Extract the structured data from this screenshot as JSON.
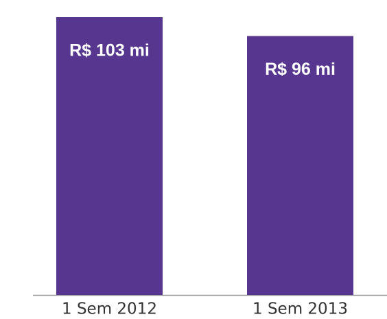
{
  "chart_data": {
    "type": "bar",
    "categories": [
      "1 Sem 2012",
      "1 Sem 2013"
    ],
    "values": [
      103,
      96
    ],
    "value_labels": [
      "R$ 103 mi",
      "R$ 96 mi"
    ],
    "color": "#56368f"
  }
}
